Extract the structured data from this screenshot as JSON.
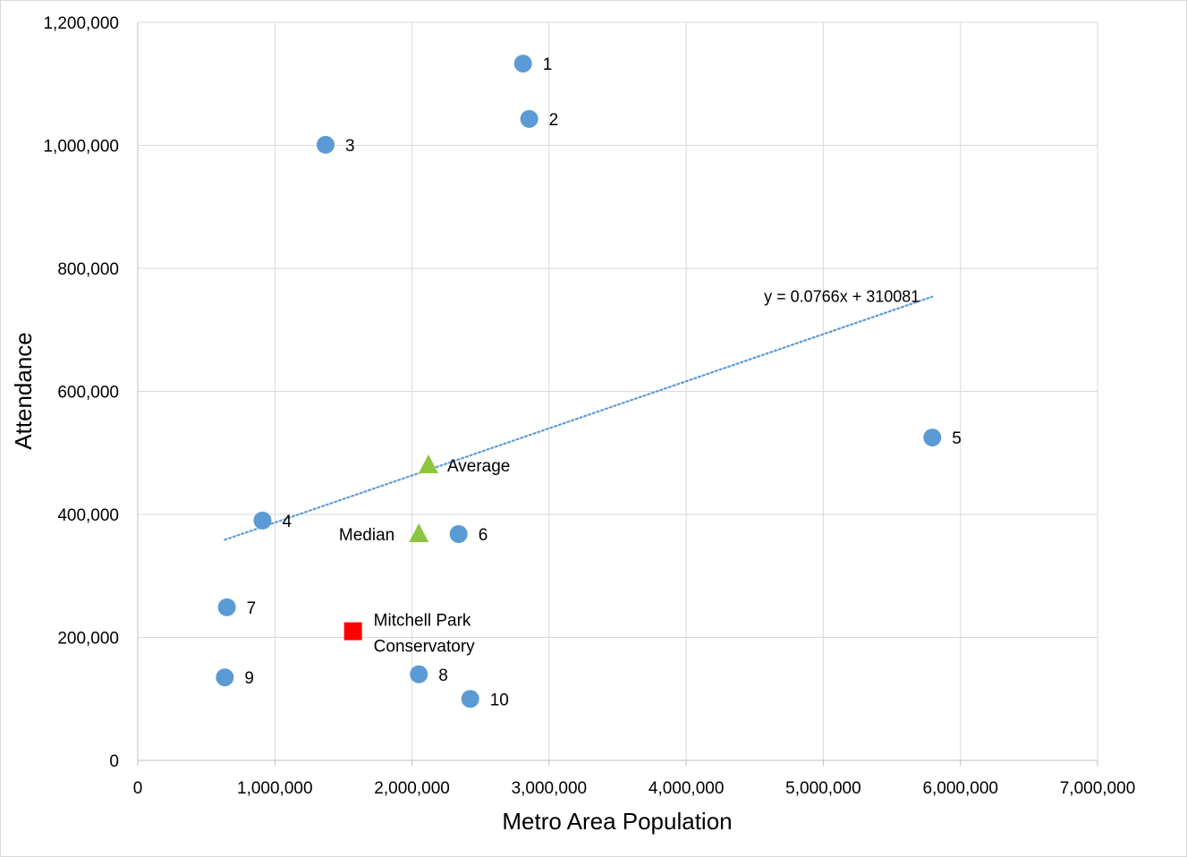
{
  "chart_data": {
    "type": "scatter",
    "xlabel": "Metro Area Population",
    "ylabel": "Attendance",
    "xlim": [
      0,
      7000000
    ],
    "ylim": [
      0,
      1200000
    ],
    "x_ticks": [
      0,
      1000000,
      2000000,
      3000000,
      4000000,
      5000000,
      6000000,
      7000000
    ],
    "x_tick_labels": [
      "0",
      "1,000,000",
      "2,000,000",
      "3,000,000",
      "4,000,000",
      "5,000,000",
      "6,000,000",
      "7,000,000"
    ],
    "y_ticks": [
      0,
      200000,
      400000,
      600000,
      800000,
      1000000,
      1200000
    ],
    "y_tick_labels": [
      "0",
      "200,000",
      "400,000",
      "600,000",
      "800,000",
      "1,000,000",
      "1,200,000"
    ],
    "grid": true,
    "series": [
      {
        "marker": "circle",
        "color": "#5b9bd5",
        "points": [
          {
            "label": "1",
            "x": 2810000,
            "y": 1133000
          },
          {
            "label": "2",
            "x": 2855000,
            "y": 1043000
          },
          {
            "label": "3",
            "x": 1370000,
            "y": 1001000
          },
          {
            "label": "4",
            "x": 910000,
            "y": 390000
          },
          {
            "label": "5",
            "x": 5795000,
            "y": 525000
          },
          {
            "label": "6",
            "x": 2340000,
            "y": 368000
          },
          {
            "label": "7",
            "x": 650000,
            "y": 249000
          },
          {
            "label": "8",
            "x": 2050000,
            "y": 140000
          },
          {
            "label": "9",
            "x": 635000,
            "y": 135000
          },
          {
            "label": "10",
            "x": 2425000,
            "y": 100000
          }
        ]
      },
      {
        "marker": "triangle",
        "color": "#8cc63f",
        "points": [
          {
            "label": "Average",
            "x": 2120000,
            "y": 480000
          },
          {
            "label": "Median",
            "x": 2050000,
            "y": 368000
          }
        ]
      },
      {
        "marker": "square",
        "color": "#ff0000",
        "points": [
          {
            "label": "Mitchell Park Conservatory",
            "label_lines": [
              "Mitchell Park",
              "Conservatory"
            ],
            "x": 1570000,
            "y": 210000
          }
        ]
      }
    ],
    "trendline": {
      "type": "linear",
      "slope": 0.0766,
      "intercept": 310081,
      "x_range": [
        635000,
        5795000
      ],
      "color": "#5b9bd5",
      "style": "dotted",
      "equation_label": "y = 0.0766x + 310081"
    }
  }
}
